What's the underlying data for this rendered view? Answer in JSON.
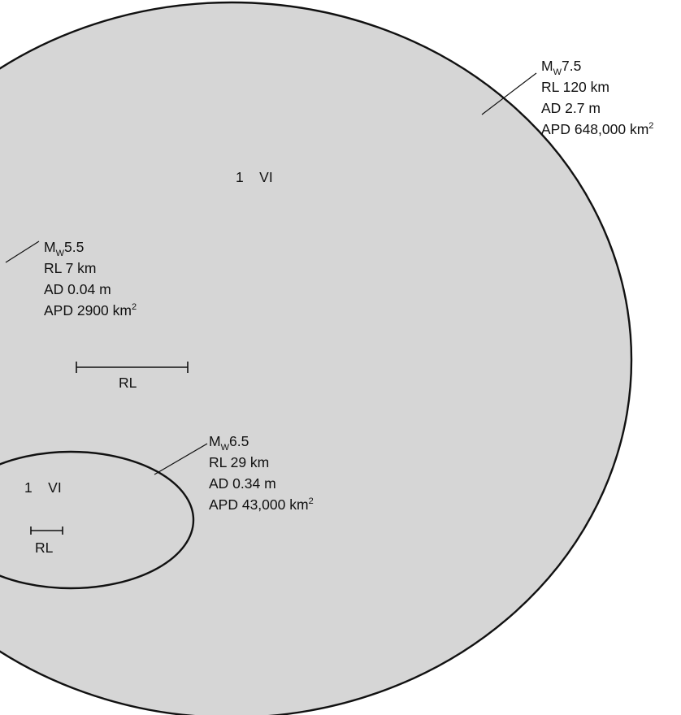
{
  "colors": {
    "fill": "#d6d6d6",
    "stroke": "#111111",
    "background": "#ffffff"
  },
  "events": {
    "mw75": {
      "magnitude_prefix": "M",
      "magnitude_sub": "W",
      "magnitude_value": "7.5",
      "rl": "RL 120 km",
      "ad": "AD 2.7 m",
      "apd_text": "APD 648,000 km",
      "apd_sup": "2",
      "intensity": "1    VI",
      "scale_label": "RL"
    },
    "mw55": {
      "magnitude_prefix": "M",
      "magnitude_sub": "W",
      "magnitude_value": "5.5",
      "rl": "RL 7 km",
      "ad": "AD 0.04 m",
      "apd_text": "APD 2900 km",
      "apd_sup": "2"
    },
    "mw65": {
      "magnitude_prefix": "M",
      "magnitude_sub": "W",
      "magnitude_value": "6.5",
      "rl": "RL 29 km",
      "ad": "AD 0.34 m",
      "apd_text": "APD 43,000 km",
      "apd_sup": "2",
      "intensity": "1    VI",
      "scale_label": "RL"
    }
  }
}
